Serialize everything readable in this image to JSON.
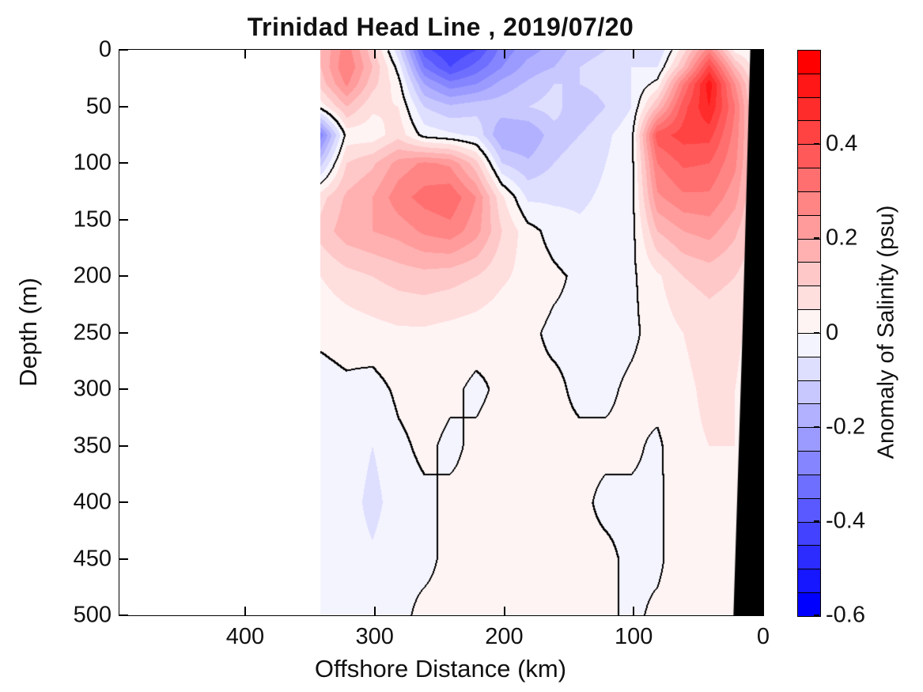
{
  "title": "Trinidad Head Line , 2019/07/20",
  "axes": {
    "xlabel": "Offshore Distance (km)",
    "ylabel": "Depth (m)",
    "x_ticks": [
      400,
      300,
      200,
      100,
      0
    ],
    "y_ticks": [
      0,
      50,
      100,
      150,
      200,
      250,
      300,
      350,
      400,
      450,
      500
    ],
    "x_range_km": [
      495,
      0
    ],
    "x_reversed": true,
    "y_range_m": [
      0,
      500
    ]
  },
  "colorbar": {
    "label": "Anomaly of Salinity (psu)",
    "min": -0.6,
    "max": 0.6,
    "step": 0.05,
    "ticks": [
      {
        "label": "0.4",
        "value": 0.4
      },
      {
        "label": "0.2",
        "value": 0.2
      },
      {
        "label": "0",
        "value": 0
      },
      {
        "label": "-0.2",
        "value": -0.2
      },
      {
        "label": "-0.4",
        "value": -0.4
      },
      {
        "label": "-0.6",
        "value": -0.6
      }
    ],
    "negative_color": "#0000FF",
    "zero_color": "#FFFFFF",
    "positive_color": "#FF0000",
    "segment_divider_color": "#000000"
  },
  "chart_data": {
    "type": "filled_contour",
    "title": "Trinidad Head Line , 2019/07/20",
    "xlabel": "Offshore Distance (km)",
    "ylabel": "Depth (m)",
    "zlabel": "Anomaly of Salinity (psu)",
    "contour_interval_psu": 0.05,
    "zero_contour_color": "#000000",
    "data_extent_km": [
      342,
      0
    ],
    "coast_mask_km_m": [
      [
        10,
        0
      ],
      [
        0,
        0
      ],
      [
        0,
        500
      ],
      [
        23,
        500
      ],
      [
        16,
        250
      ]
    ],
    "x_km": [
      342,
      322,
      302,
      282,
      262,
      242,
      222,
      202,
      182,
      162,
      142,
      122,
      102,
      82,
      62,
      42,
      22,
      10,
      0
    ],
    "depth_m": [
      0,
      15,
      30,
      50,
      75,
      100,
      130,
      160,
      200,
      250,
      300,
      350,
      400,
      450,
      500
    ],
    "anomaly_psu": [
      [
        0.15,
        0.28,
        0.12,
        -0.08,
        -0.38,
        -0.45,
        -0.4,
        -0.28,
        -0.22,
        -0.18,
        -0.12,
        -0.1,
        -0.05,
        -0.1,
        0.08,
        0.28,
        0.03,
        0.01,
        0.0
      ],
      [
        0.15,
        0.3,
        0.15,
        -0.02,
        -0.3,
        -0.4,
        -0.33,
        -0.25,
        -0.18,
        -0.15,
        -0.1,
        -0.08,
        -0.05,
        -0.05,
        0.15,
        0.42,
        0.15,
        0.05,
        0.02
      ],
      [
        0.12,
        0.26,
        0.12,
        0.02,
        -0.2,
        -0.28,
        -0.25,
        -0.18,
        -0.14,
        -0.1,
        -0.1,
        -0.08,
        -0.05,
        0.02,
        0.3,
        0.53,
        0.25,
        0.1,
        0.03
      ],
      [
        0.02,
        0.15,
        0.06,
        0.05,
        -0.1,
        -0.14,
        -0.12,
        -0.12,
        -0.1,
        -0.08,
        -0.14,
        -0.1,
        -0.05,
        0.15,
        0.38,
        0.5,
        0.3,
        0.13,
        0.05
      ],
      [
        -0.28,
        0.02,
        0.02,
        0.08,
        -0.02,
        -0.04,
        -0.06,
        -0.2,
        -0.2,
        -0.12,
        -0.1,
        -0.06,
        -0.02,
        0.38,
        0.42,
        0.42,
        0.28,
        0.14,
        0.06
      ],
      [
        -0.12,
        0.1,
        0.14,
        0.22,
        0.26,
        0.24,
        0.12,
        -0.1,
        -0.14,
        -0.1,
        -0.08,
        -0.05,
        -0.02,
        0.3,
        0.36,
        0.35,
        0.26,
        0.14,
        0.06
      ],
      [
        0.08,
        0.16,
        0.2,
        0.28,
        0.32,
        0.34,
        0.25,
        0.06,
        -0.06,
        -0.06,
        -0.06,
        -0.04,
        -0.02,
        0.24,
        0.29,
        0.29,
        0.22,
        0.12,
        0.05
      ],
      [
        0.12,
        0.18,
        0.2,
        0.22,
        0.26,
        0.28,
        0.22,
        0.1,
        0.02,
        -0.02,
        -0.04,
        -0.03,
        -0.02,
        0.15,
        0.2,
        0.22,
        0.16,
        0.1,
        0.05
      ],
      [
        0.05,
        0.08,
        0.1,
        0.12,
        0.13,
        0.12,
        0.1,
        0.06,
        0.03,
        0.01,
        -0.01,
        -0.01,
        -0.01,
        0.04,
        0.1,
        0.12,
        0.1,
        0.07,
        0.03
      ],
      [
        0.01,
        0.02,
        0.03,
        0.04,
        0.04,
        0.03,
        0.02,
        0.01,
        0.01,
        -0.01,
        -0.01,
        -0.02,
        -0.01,
        0.02,
        0.05,
        0.07,
        0.06,
        0.04,
        0.02
      ],
      [
        -0.02,
        -0.01,
        -0.02,
        0.01,
        0.02,
        0.01,
        -0.01,
        0.01,
        0.01,
        0.01,
        -0.01,
        -0.01,
        0.01,
        0.02,
        0.04,
        0.06,
        0.05,
        0.03,
        0.02
      ],
      [
        -0.02,
        -0.01,
        -0.05,
        -0.01,
        0.01,
        -0.01,
        0.01,
        0.02,
        0.02,
        0.01,
        0.01,
        0.01,
        0.01,
        -0.01,
        0.04,
        0.05,
        0.05,
        0.03,
        0.02
      ],
      [
        -0.01,
        -0.02,
        -0.07,
        -0.02,
        -0.01,
        0.01,
        0.01,
        0.02,
        0.02,
        0.02,
        0.01,
        -0.01,
        -0.01,
        -0.01,
        0.03,
        0.05,
        0.04,
        0.03,
        0.02
      ],
      [
        -0.01,
        -0.02,
        -0.04,
        -0.01,
        -0.01,
        0.01,
        0.01,
        0.02,
        0.02,
        0.01,
        0.01,
        0.01,
        -0.01,
        -0.01,
        0.03,
        0.04,
        0.04,
        0.03,
        0.02
      ],
      [
        -0.01,
        -0.02,
        -0.02,
        -0.01,
        0.01,
        0.01,
        0.01,
        0.01,
        0.02,
        0.01,
        0.01,
        0.01,
        -0.01,
        0.01,
        0.02,
        0.04,
        0.03,
        0.03,
        0.02
      ]
    ]
  }
}
